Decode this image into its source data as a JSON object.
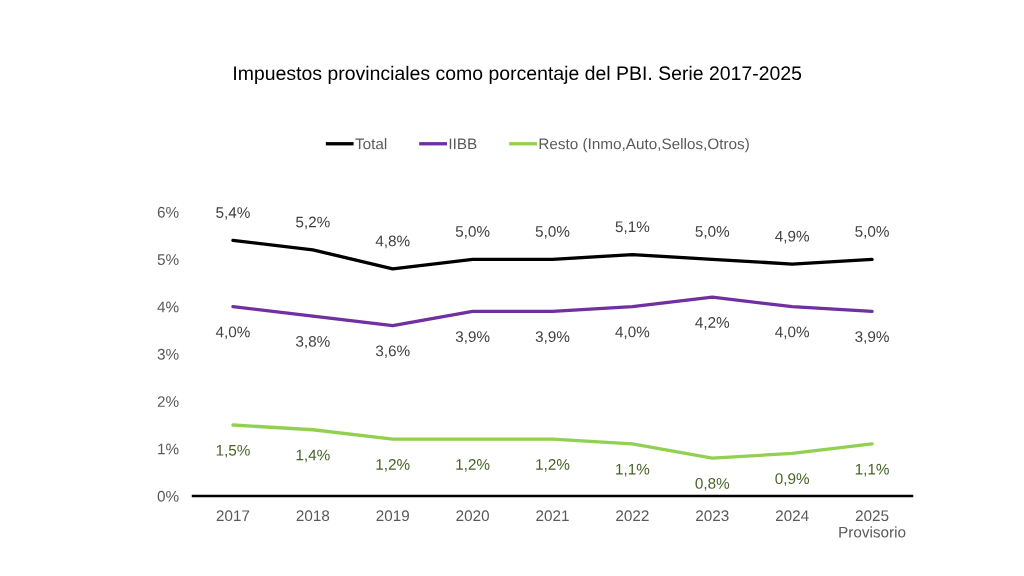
{
  "chart_data": {
    "type": "line",
    "title": "Impuestos provinciales como porcentaje del PBI. Serie 2017-2025",
    "categories": [
      "2017",
      "2018",
      "2019",
      "2020",
      "2021",
      "2022",
      "2023",
      "2024",
      "2025\nProvisorio"
    ],
    "series": [
      {
        "name": "Total",
        "color": "#000000",
        "values": [
          5.4,
          5.2,
          4.8,
          5.0,
          5.0,
          5.1,
          5.0,
          4.9,
          5.0
        ],
        "value_labels": [
          "5,4%",
          "5,2%",
          "4,8%",
          "5,0%",
          "5,0%",
          "5,1%",
          "5,0%",
          "4,9%",
          "5,0%"
        ]
      },
      {
        "name": "IIBB",
        "color": "#7030a0",
        "values": [
          4.0,
          3.8,
          3.6,
          3.9,
          3.9,
          4.0,
          4.2,
          4.0,
          3.9
        ],
        "value_labels": [
          "4,0%",
          "3,8%",
          "3,6%",
          "3,9%",
          "3,9%",
          "4,0%",
          "4,2%",
          "4,0%",
          "3,9%"
        ]
      },
      {
        "name": "Resto (Inmo,Auto,Sellos,Otros)",
        "color": "#92d050",
        "values": [
          1.5,
          1.4,
          1.2,
          1.2,
          1.2,
          1.1,
          0.8,
          0.9,
          1.1
        ],
        "value_labels": [
          "1,5%",
          "1,4%",
          "1,2%",
          "1,2%",
          "1,2%",
          "1,1%",
          "0,8%",
          "0,9%",
          "1,1%"
        ]
      }
    ],
    "ylim": [
      0,
      6
    ],
    "yticks": [
      {
        "value": 0,
        "label": "0%"
      },
      {
        "value": 1,
        "label": "1%"
      },
      {
        "value": 2,
        "label": "2%"
      },
      {
        "value": 3,
        "label": "3%"
      },
      {
        "value": 4,
        "label": "4%"
      },
      {
        "value": 5,
        "label": "5%"
      },
      {
        "value": 6,
        "label": "6%"
      }
    ],
    "grid": false,
    "legend": "top",
    "marker": "none",
    "line_style": "solid"
  }
}
